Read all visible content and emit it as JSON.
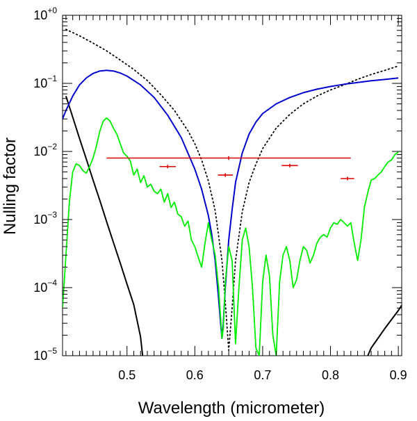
{
  "chart_data": {
    "type": "line",
    "title": "",
    "xlabel": "Wavelength (micrometer)",
    "ylabel": "Nulling factor",
    "xlim": [
      0.405,
      0.905
    ],
    "ylim": [
      1e-05,
      1
    ],
    "yscale": "log",
    "x_ticks": [
      {
        "value": 0.5,
        "label": "0.5"
      },
      {
        "value": 0.6,
        "label": "0.6"
      },
      {
        "value": 0.7,
        "label": "0.7"
      },
      {
        "value": 0.8,
        "label": "0.8"
      },
      {
        "value": 0.9,
        "label": "0.9"
      }
    ],
    "y_ticks": [
      {
        "value": 1,
        "base": "10",
        "exp": "+0"
      },
      {
        "value": 0.1,
        "base": "10",
        "exp": "−1"
      },
      {
        "value": 0.01,
        "base": "10",
        "exp": "−2"
      },
      {
        "value": 0.001,
        "base": "10",
        "exp": "−3"
      },
      {
        "value": 0.0001,
        "base": "10",
        "exp": "−4"
      },
      {
        "value": 1e-05,
        "base": "10",
        "exp": "−5"
      }
    ],
    "series": [
      {
        "name": "black-solid",
        "color": "#000000",
        "style": "solid",
        "x": [
          0.41,
          0.42,
          0.43,
          0.44,
          0.45,
          0.46,
          0.47,
          0.48,
          0.49,
          0.5,
          0.51,
          0.52,
          0.523
        ],
        "y": [
          0.065,
          0.032,
          0.0155,
          0.0077,
          0.0038,
          0.0019,
          0.00093,
          0.00046,
          0.00023,
          0.000113,
          5.6e-05,
          1.9e-05,
          1e-05
        ],
        "x2": [
          0.855,
          0.86,
          0.87,
          0.88,
          0.89,
          0.9,
          0.905
        ],
        "y2": [
          1e-05,
          1.3e-05,
          1.8e-05,
          2.5e-05,
          3.4e-05,
          4.6e-05,
          5.5e-05
        ]
      },
      {
        "name": "black-dotted",
        "color": "#000000",
        "style": "dotted",
        "x": [
          0.41,
          0.43,
          0.45,
          0.47,
          0.49,
          0.51,
          0.53,
          0.55,
          0.57,
          0.59,
          0.6,
          0.61,
          0.62,
          0.63,
          0.64,
          0.645,
          0.65,
          0.655,
          0.66,
          0.67,
          0.68,
          0.69,
          0.7,
          0.72,
          0.74,
          0.76,
          0.78,
          0.8,
          0.82,
          0.84,
          0.86,
          0.88,
          0.9
        ],
        "y": [
          0.62,
          0.5,
          0.39,
          0.3,
          0.22,
          0.16,
          0.11,
          0.068,
          0.04,
          0.02,
          0.013,
          0.0075,
          0.0037,
          0.00135,
          0.00025,
          6e-05,
          1.2e-05,
          5e-05,
          0.00025,
          0.0013,
          0.0035,
          0.0065,
          0.011,
          0.022,
          0.035,
          0.05,
          0.065,
          0.08,
          0.095,
          0.115,
          0.135,
          0.155,
          0.18
        ]
      },
      {
        "name": "blue",
        "color": "#0000cc",
        "style": "solid",
        "x": [
          0.405,
          0.41,
          0.42,
          0.43,
          0.44,
          0.45,
          0.46,
          0.47,
          0.48,
          0.49,
          0.5,
          0.52,
          0.54,
          0.56,
          0.58,
          0.6,
          0.61,
          0.62,
          0.625,
          0.63,
          0.635,
          0.638,
          0.64,
          0.642,
          0.645,
          0.65,
          0.655,
          0.66,
          0.67,
          0.68,
          0.69,
          0.7,
          0.72,
          0.74,
          0.76,
          0.78,
          0.8,
          0.82,
          0.84,
          0.86,
          0.88,
          0.9
        ],
        "y": [
          0.03,
          0.04,
          0.065,
          0.095,
          0.12,
          0.14,
          0.152,
          0.155,
          0.152,
          0.142,
          0.128,
          0.095,
          0.062,
          0.034,
          0.016,
          0.0055,
          0.0028,
          0.00115,
          0.0006,
          0.00025,
          7e-05,
          3e-05,
          1.8e-05,
          3e-05,
          0.0001,
          0.0005,
          0.0014,
          0.0035,
          0.0095,
          0.018,
          0.027,
          0.036,
          0.05,
          0.062,
          0.073,
          0.082,
          0.09,
          0.097,
          0.103,
          0.109,
          0.114,
          0.12
        ]
      },
      {
        "name": "green",
        "color": "#00ee00",
        "style": "solid",
        "x": [
          0.405,
          0.41,
          0.415,
          0.42,
          0.425,
          0.43,
          0.435,
          0.44,
          0.445,
          0.45,
          0.455,
          0.46,
          0.465,
          0.47,
          0.475,
          0.48,
          0.485,
          0.49,
          0.495,
          0.5,
          0.505,
          0.51,
          0.515,
          0.52,
          0.525,
          0.53,
          0.535,
          0.54,
          0.545,
          0.55,
          0.555,
          0.56,
          0.565,
          0.57,
          0.575,
          0.58,
          0.585,
          0.59,
          0.595,
          0.6,
          0.605,
          0.61,
          0.615,
          0.62,
          0.625,
          0.63,
          0.635,
          0.64,
          0.642,
          0.645,
          0.65,
          0.655,
          0.66,
          0.665,
          0.67,
          0.675,
          0.68,
          0.685,
          0.69,
          0.695,
          0.7,
          0.705,
          0.71,
          0.715,
          0.72,
          0.725,
          0.73,
          0.735,
          0.74,
          0.745,
          0.75,
          0.755,
          0.76,
          0.765,
          0.77,
          0.775,
          0.78,
          0.785,
          0.79,
          0.795,
          0.8,
          0.805,
          0.81,
          0.815,
          0.82,
          0.825,
          0.83,
          0.835,
          0.84,
          0.845,
          0.85,
          0.855,
          0.86,
          0.865,
          0.87,
          0.875,
          0.88,
          0.885,
          0.89,
          0.895,
          0.9
        ],
        "y": [
          5e-05,
          0.0003,
          0.0018,
          0.005,
          0.0066,
          0.0062,
          0.0052,
          0.0048,
          0.006,
          0.008,
          0.012,
          0.02,
          0.028,
          0.031,
          0.028,
          0.022,
          0.018,
          0.013,
          0.0095,
          0.0085,
          0.0072,
          0.0045,
          0.0055,
          0.0035,
          0.0044,
          0.003,
          0.0033,
          0.0026,
          0.0024,
          0.0028,
          0.0018,
          0.0024,
          0.0015,
          0.0018,
          0.0012,
          0.0011,
          0.0008,
          0.00095,
          0.0005,
          0.0004,
          0.00028,
          0.0002,
          0.00045,
          0.0009,
          0.0005,
          0.0003,
          0.0001,
          1.8e-05,
          2.5e-05,
          0.00012,
          0.0004,
          0.00025,
          1.5e-05,
          0.0001,
          0.0005,
          0.00075,
          0.0004,
          0.0001,
          1.3e-05,
          1e-05,
          0.00012,
          0.0003,
          0.00015,
          2e-05,
          1e-05,
          0.00012,
          0.0003,
          0.0004,
          0.00025,
          0.0001,
          0.00013,
          0.00025,
          0.0004,
          0.00035,
          0.00023,
          0.0003,
          0.00045,
          0.00055,
          0.0006,
          0.00055,
          0.00075,
          0.0009,
          0.00085,
          0.001,
          0.0009,
          0.0008,
          0.0009,
          0.00045,
          0.00025,
          0.0005,
          0.0015,
          0.0025,
          0.0038,
          0.004,
          0.0045,
          0.005,
          0.006,
          0.007,
          0.0075,
          0.009,
          0.0098
        ]
      }
    ],
    "error_bars": {
      "color": "#dd0000",
      "points": [
        {
          "x": 0.65,
          "xmin": 0.47,
          "xmax": 0.83,
          "y": 0.008
        },
        {
          "x": 0.56,
          "xmin": 0.548,
          "xmax": 0.572,
          "y": 0.006
        },
        {
          "x": 0.645,
          "xmin": 0.634,
          "xmax": 0.656,
          "y": 0.0045
        },
        {
          "x": 0.74,
          "xmin": 0.728,
          "xmax": 0.752,
          "y": 0.0062
        },
        {
          "x": 0.825,
          "xmin": 0.815,
          "xmax": 0.835,
          "y": 0.004
        }
      ]
    }
  }
}
